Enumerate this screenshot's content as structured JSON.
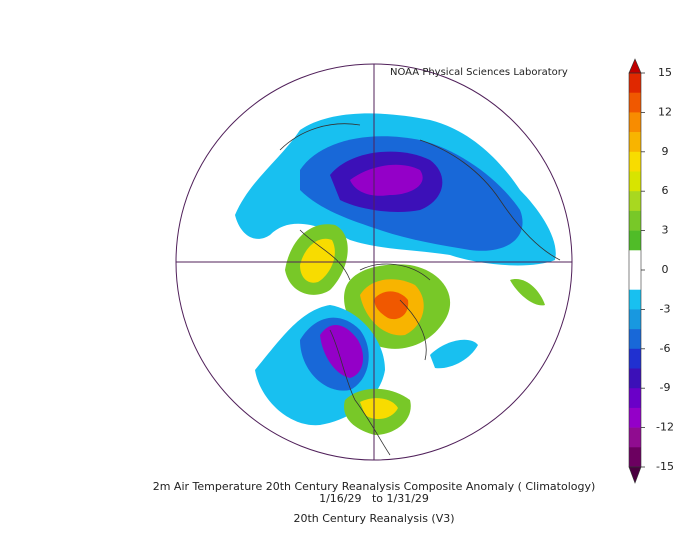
{
  "header": {
    "credit": "NOAA Physical Sciences Laboratory"
  },
  "colorbar": {
    "ticks": [
      15,
      12,
      9,
      6,
      3,
      0,
      -3,
      -6,
      -9,
      -12,
      -15
    ],
    "colors": [
      "#e02800",
      "#f05800",
      "#f88c00",
      "#f8b400",
      "#f8dc00",
      "#d8e400",
      "#a8d820",
      "#78c828",
      "#50bc28",
      "#ffffff",
      "#ffffff",
      "#18c0f0",
      "#1898e0",
      "#1868d8",
      "#2030d0",
      "#3c10b8",
      "#6a00c8",
      "#9400c8",
      "#900c90",
      "#6c0060"
    ],
    "over_color": "#c00000",
    "under_color": "#4a0040"
  },
  "footer": {
    "title": "2m Air Temperature 20th Century Reanalysis Composite Anomaly ( Climatology)",
    "dates": "1/16/29   to 1/31/29",
    "source": "20th Century Reanalysis (V3)"
  }
}
